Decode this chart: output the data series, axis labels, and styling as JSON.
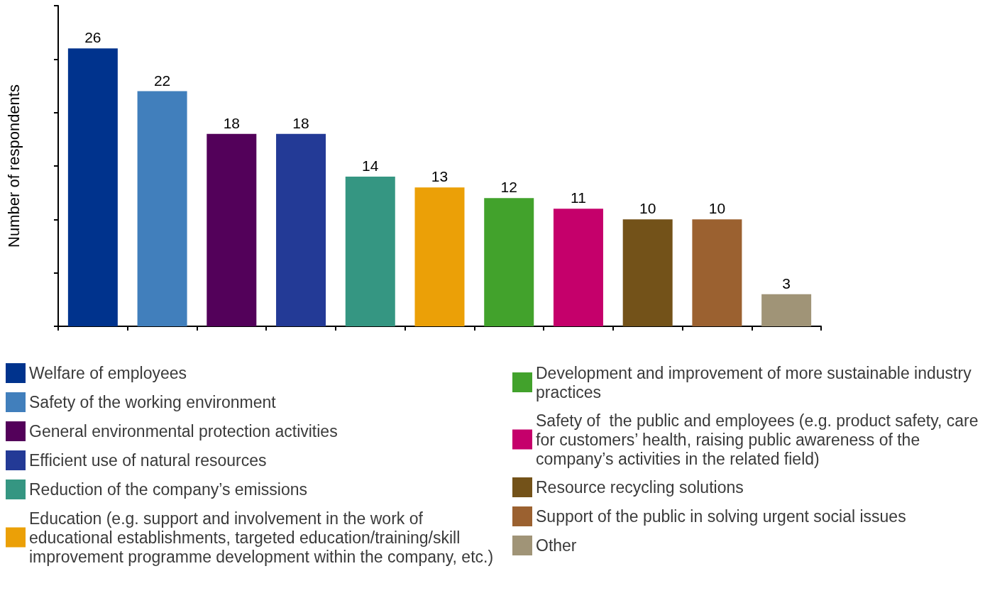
{
  "chart_data": {
    "type": "bar",
    "ylabel": "Number of respondents",
    "categories": [
      null,
      null,
      null,
      null,
      null,
      null,
      null,
      null,
      null,
      null,
      null
    ],
    "stacked": true,
    "series": [
      {
        "name": "Welfare of employees",
        "color": "#00338d",
        "values": [
          26,
          null,
          null,
          null,
          null,
          null,
          null,
          null,
          null,
          null,
          null
        ]
      },
      {
        "name": "Safety of the working environment",
        "color": "#417fbc",
        "values": [
          null,
          22,
          null,
          null,
          null,
          null,
          null,
          null,
          null,
          null,
          null
        ]
      },
      {
        "name": "General environmental protection activities",
        "color": "#53015a",
        "values": [
          null,
          null,
          18,
          null,
          null,
          null,
          null,
          null,
          null,
          null,
          null
        ]
      },
      {
        "name": "Efficient use of natural resources",
        "color": "#233a96",
        "values": [
          null,
          null,
          null,
          18,
          null,
          null,
          null,
          null,
          null,
          null,
          null
        ]
      },
      {
        "name": "Reduction of the company’s emissions",
        "color": "#359682",
        "values": [
          null,
          null,
          null,
          null,
          14,
          null,
          null,
          null,
          null,
          null,
          null
        ]
      },
      {
        "name": "Education (e.g. support and involvement in the work of educational establishments, targeted education/training/skill improvement programme development within the company, etc.)",
        "color": "#eba007",
        "values": [
          null,
          null,
          null,
          null,
          null,
          13,
          null,
          null,
          null,
          null,
          null
        ]
      },
      {
        "name": "Development and improvement of more sustainable industry practices",
        "color": "#42a22c",
        "values": [
          null,
          null,
          null,
          null,
          null,
          null,
          12,
          null,
          null,
          null,
          null
        ]
      },
      {
        "name": "Safety of  the public and employees (e.g. product safety, care for customers’ health, raising public awareness of the company’s activities in the related field)",
        "color": "#c5006b",
        "values": [
          null,
          null,
          null,
          null,
          null,
          null,
          null,
          11,
          null,
          null,
          null
        ]
      },
      {
        "name": "Resource recycling solutions",
        "color": "#735219",
        "values": [
          null,
          null,
          null,
          null,
          null,
          null,
          null,
          null,
          10,
          null,
          null
        ]
      },
      {
        "name": "Support of the public in solving urgent social issues",
        "color": "#9b6130",
        "values": [
          null,
          null,
          null,
          null,
          null,
          null,
          null,
          null,
          null,
          10,
          null
        ]
      },
      {
        "name": "Other",
        "color": "#a09477",
        "values": [
          null,
          null,
          null,
          null,
          null,
          null,
          null,
          null,
          null,
          null,
          3
        ]
      }
    ],
    "ylim": [
      0,
      30
    ],
    "yticks": [
      {
        "value": 0,
        "label": null
      },
      {
        "value": 5,
        "label": null
      },
      {
        "value": 10,
        "label": null
      },
      {
        "value": 15,
        "label": null
      },
      {
        "value": 20,
        "label": null
      },
      {
        "value": 25,
        "label": null
      },
      {
        "value": 30,
        "label": null
      }
    ],
    "data_labels": true,
    "grid": false,
    "legend": "bottom"
  }
}
